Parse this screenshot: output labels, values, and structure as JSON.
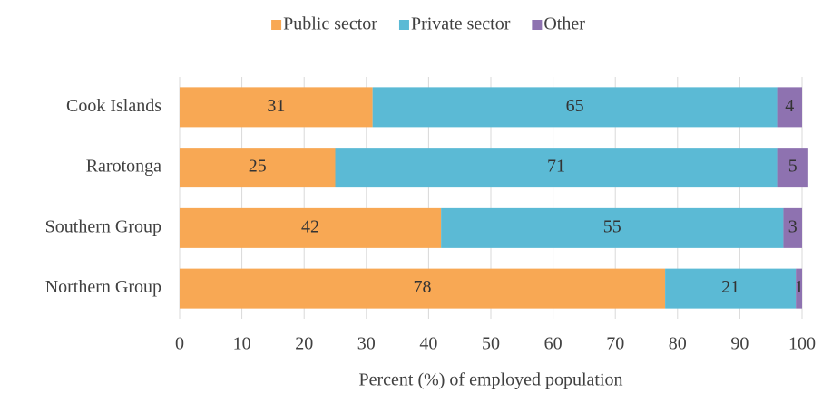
{
  "chart_data": {
    "type": "bar",
    "orientation": "horizontal",
    "stacked": true,
    "categories": [
      "Cook Islands",
      "Rarotonga",
      "Southern Group",
      "Northern Group"
    ],
    "series": [
      {
        "name": "Public sector",
        "color": "#F8A854",
        "values": [
          31,
          25,
          42,
          78
        ]
      },
      {
        "name": "Private sector",
        "color": "#5BBAD5",
        "values": [
          65,
          71,
          55,
          21
        ]
      },
      {
        "name": "Other",
        "color": "#8E72B0",
        "values": [
          4,
          5,
          3,
          1
        ]
      }
    ],
    "xlabel": "Percent (%) of employed population",
    "xlim": [
      0,
      100
    ],
    "xticks": [
      0,
      10,
      20,
      30,
      40,
      50,
      60,
      70,
      80,
      90,
      100
    ],
    "grid": true,
    "legend": "top"
  }
}
